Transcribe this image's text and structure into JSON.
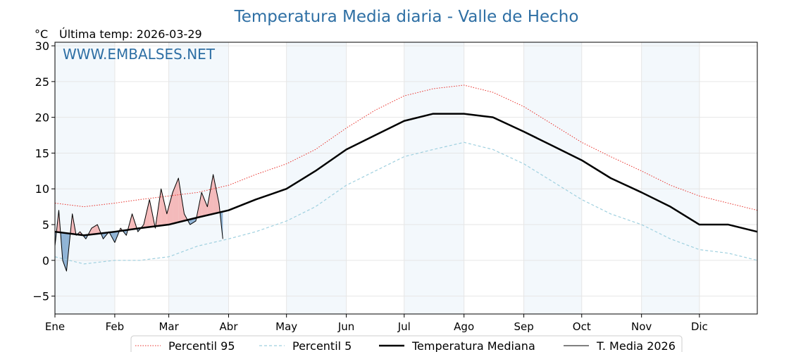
{
  "chart_data": {
    "type": "line",
    "title": "Temperatura Media diaria - Valle de Hecho",
    "unit_label": "°C",
    "last_temp_label": "Última temp: 2026-03-29",
    "watermark": "WWW.EMBALSES.NET",
    "ylim": [
      -7.5,
      30.5
    ],
    "y_ticks": [
      -5,
      0,
      5,
      10,
      15,
      20,
      25,
      30
    ],
    "x_range_days": [
      1,
      365
    ],
    "months": [
      {
        "label": "Ene",
        "day": 1
      },
      {
        "label": "Feb",
        "day": 32
      },
      {
        "label": "Mar",
        "day": 60
      },
      {
        "label": "Abr",
        "day": 91
      },
      {
        "label": "May",
        "day": 121
      },
      {
        "label": "Jun",
        "day": 152
      },
      {
        "label": "Jul",
        "day": 182
      },
      {
        "label": "Ago",
        "day": 213
      },
      {
        "label": "Sep",
        "day": 244
      },
      {
        "label": "Oct",
        "day": 274
      },
      {
        "label": "Nov",
        "day": 305
      },
      {
        "label": "Dic",
        "day": 335
      }
    ],
    "grid": true,
    "legend_position": "bottom",
    "series": [
      {
        "name": "Percentil 95",
        "color": "#e8302a",
        "style": "dotted",
        "x": [
          1,
          16,
          32,
          45,
          60,
          75,
          91,
          105,
          121,
          136,
          152,
          167,
          182,
          197,
          213,
          228,
          244,
          259,
          274,
          289,
          305,
          320,
          335,
          350,
          365
        ],
        "y": [
          8.0,
          7.5,
          8.0,
          8.5,
          9.0,
          9.5,
          10.5,
          12.0,
          13.5,
          15.5,
          18.5,
          21.0,
          23.0,
          24.0,
          24.5,
          23.5,
          21.5,
          19.0,
          16.5,
          14.5,
          12.5,
          10.5,
          9.0,
          8.0,
          7.0
        ]
      },
      {
        "name": "Percentil 5",
        "color": "#9fd0df",
        "style": "dashed",
        "x": [
          1,
          16,
          32,
          45,
          60,
          75,
          91,
          105,
          121,
          136,
          152,
          167,
          182,
          197,
          213,
          228,
          244,
          259,
          274,
          289,
          305,
          320,
          335,
          350,
          365
        ],
        "y": [
          0.5,
          -0.5,
          0.0,
          0.0,
          0.5,
          2.0,
          3.0,
          4.0,
          5.5,
          7.5,
          10.5,
          12.5,
          14.5,
          15.5,
          16.5,
          15.5,
          13.5,
          11.0,
          8.5,
          6.5,
          5.0,
          3.0,
          1.5,
          1.0,
          0.0
        ]
      },
      {
        "name": "Temperatura Mediana",
        "color": "#000000",
        "style": "solid-thick",
        "x": [
          1,
          16,
          32,
          45,
          60,
          75,
          91,
          105,
          121,
          136,
          152,
          167,
          182,
          197,
          213,
          228,
          244,
          259,
          274,
          289,
          305,
          320,
          335,
          350,
          365
        ],
        "y": [
          4.0,
          3.5,
          4.0,
          4.5,
          5.0,
          6.0,
          7.0,
          8.5,
          10.0,
          12.5,
          15.5,
          17.5,
          19.5,
          20.5,
          20.5,
          20.0,
          18.0,
          16.0,
          14.0,
          11.5,
          9.5,
          7.5,
          5.0,
          5.0,
          4.0
        ]
      },
      {
        "name": "T. Media 2026",
        "color": "#000000",
        "style": "solid-thin",
        "x": [
          1,
          3,
          5,
          7,
          10,
          12,
          14,
          17,
          20,
          23,
          26,
          29,
          32,
          35,
          38,
          41,
          44,
          47,
          50,
          53,
          56,
          59,
          62,
          65,
          68,
          71,
          74,
          77,
          80,
          83,
          86,
          88
        ],
        "y": [
          2.0,
          7.0,
          0.0,
          -1.5,
          6.5,
          3.5,
          4.0,
          3.0,
          4.5,
          5.0,
          3.0,
          4.0,
          2.5,
          4.5,
          3.5,
          6.5,
          4.0,
          5.0,
          8.5,
          4.5,
          10.0,
          6.5,
          9.5,
          11.5,
          6.5,
          5.0,
          5.5,
          9.5,
          7.5,
          12.0,
          8.0,
          3.0
        ]
      }
    ]
  }
}
